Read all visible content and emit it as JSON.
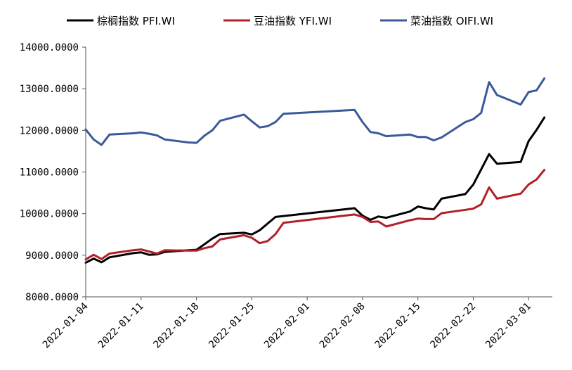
{
  "chart_data": {
    "type": "line",
    "ylim": [
      8000,
      14000
    ],
    "yticks": [
      "8000.0000",
      "9000.0000",
      "10000.0000",
      "11000.0000",
      "12000.0000",
      "13000.0000",
      "14000.0000"
    ],
    "xlim": [
      "2022-01-04",
      "2022-03-04"
    ],
    "xticks": [
      "2022-01-04",
      "2022-01-11",
      "2022-01-18",
      "2022-01-25",
      "2022-02-01",
      "2022-02-08",
      "2022-02-15",
      "2022-02-22",
      "2022-03-01"
    ],
    "legend_position": "top",
    "grid": false,
    "series": [
      {
        "name": "棕榈指数 PFI.WI",
        "color": "#000000",
        "points": [
          [
            "2022-01-04",
            8820
          ],
          [
            "2022-01-05",
            8920
          ],
          [
            "2022-01-06",
            8830
          ],
          [
            "2022-01-07",
            8950
          ],
          [
            "2022-01-10",
            9050
          ],
          [
            "2022-01-11",
            9070
          ],
          [
            "2022-01-12",
            9010
          ],
          [
            "2022-01-13",
            9020
          ],
          [
            "2022-01-14",
            9080
          ],
          [
            "2022-01-17",
            9120
          ],
          [
            "2022-01-18",
            9130
          ],
          [
            "2022-01-19",
            9260
          ],
          [
            "2022-01-20",
            9400
          ],
          [
            "2022-01-21",
            9510
          ],
          [
            "2022-01-24",
            9540
          ],
          [
            "2022-01-25",
            9500
          ],
          [
            "2022-01-26",
            9600
          ],
          [
            "2022-01-27",
            9760
          ],
          [
            "2022-01-28",
            9920
          ],
          [
            "2022-02-07",
            10130
          ],
          [
            "2022-02-08",
            9950
          ],
          [
            "2022-02-09",
            9850
          ],
          [
            "2022-02-10",
            9930
          ],
          [
            "2022-02-11",
            9900
          ],
          [
            "2022-02-14",
            10050
          ],
          [
            "2022-02-15",
            10170
          ],
          [
            "2022-02-16",
            10130
          ],
          [
            "2022-02-17",
            10100
          ],
          [
            "2022-02-18",
            10360
          ],
          [
            "2022-02-21",
            10470
          ],
          [
            "2022-02-22",
            10700
          ],
          [
            "2022-02-23",
            11060
          ],
          [
            "2022-02-24",
            11430
          ],
          [
            "2022-02-25",
            11200
          ],
          [
            "2022-02-28",
            11240
          ],
          [
            "2022-03-01",
            11740
          ],
          [
            "2022-03-02",
            12010
          ],
          [
            "2022-03-03",
            12310
          ]
        ]
      },
      {
        "name": "豆油指数 YFI.WI",
        "color": "#B22028",
        "points": [
          [
            "2022-01-04",
            8900
          ],
          [
            "2022-01-05",
            9010
          ],
          [
            "2022-01-06",
            8910
          ],
          [
            "2022-01-07",
            9040
          ],
          [
            "2022-01-10",
            9120
          ],
          [
            "2022-01-11",
            9140
          ],
          [
            "2022-01-12",
            9090
          ],
          [
            "2022-01-13",
            9040
          ],
          [
            "2022-01-14",
            9120
          ],
          [
            "2022-01-17",
            9110
          ],
          [
            "2022-01-18",
            9110
          ],
          [
            "2022-01-19",
            9170
          ],
          [
            "2022-01-20",
            9210
          ],
          [
            "2022-01-21",
            9380
          ],
          [
            "2022-01-24",
            9480
          ],
          [
            "2022-01-25",
            9420
          ],
          [
            "2022-01-26",
            9290
          ],
          [
            "2022-01-27",
            9340
          ],
          [
            "2022-01-28",
            9510
          ],
          [
            "2022-01-29",
            9780
          ],
          [
            "2022-02-07",
            9980
          ],
          [
            "2022-02-08",
            9920
          ],
          [
            "2022-02-09",
            9800
          ],
          [
            "2022-02-10",
            9810
          ],
          [
            "2022-02-11",
            9690
          ],
          [
            "2022-02-14",
            9840
          ],
          [
            "2022-02-15",
            9880
          ],
          [
            "2022-02-16",
            9870
          ],
          [
            "2022-02-17",
            9870
          ],
          [
            "2022-02-18",
            10010
          ],
          [
            "2022-02-21",
            10090
          ],
          [
            "2022-02-22",
            10120
          ],
          [
            "2022-02-23",
            10220
          ],
          [
            "2022-02-24",
            10630
          ],
          [
            "2022-02-25",
            10360
          ],
          [
            "2022-02-28",
            10480
          ],
          [
            "2022-03-01",
            10700
          ],
          [
            "2022-03-02",
            10820
          ],
          [
            "2022-03-03",
            11050
          ]
        ]
      },
      {
        "name": "菜油指数 OIFI.WI",
        "color": "#3A5A9C",
        "points": [
          [
            "2022-01-04",
            12020
          ],
          [
            "2022-01-05",
            11780
          ],
          [
            "2022-01-06",
            11650
          ],
          [
            "2022-01-07",
            11900
          ],
          [
            "2022-01-10",
            11930
          ],
          [
            "2022-01-11",
            11950
          ],
          [
            "2022-01-12",
            11920
          ],
          [
            "2022-01-13",
            11880
          ],
          [
            "2022-01-14",
            11780
          ],
          [
            "2022-01-17",
            11710
          ],
          [
            "2022-01-18",
            11700
          ],
          [
            "2022-01-19",
            11870
          ],
          [
            "2022-01-20",
            12000
          ],
          [
            "2022-01-21",
            12230
          ],
          [
            "2022-01-24",
            12380
          ],
          [
            "2022-01-25",
            12220
          ],
          [
            "2022-01-26",
            12070
          ],
          [
            "2022-01-27",
            12100
          ],
          [
            "2022-01-28",
            12200
          ],
          [
            "2022-01-29",
            12400
          ],
          [
            "2022-02-07",
            12490
          ],
          [
            "2022-02-08",
            12200
          ],
          [
            "2022-02-09",
            11960
          ],
          [
            "2022-02-10",
            11930
          ],
          [
            "2022-02-11",
            11860
          ],
          [
            "2022-02-14",
            11900
          ],
          [
            "2022-02-15",
            11840
          ],
          [
            "2022-02-16",
            11840
          ],
          [
            "2022-02-17",
            11760
          ],
          [
            "2022-02-18",
            11830
          ],
          [
            "2022-02-21",
            12200
          ],
          [
            "2022-02-22",
            12270
          ],
          [
            "2022-02-23",
            12420
          ],
          [
            "2022-02-24",
            13160
          ],
          [
            "2022-02-25",
            12850
          ],
          [
            "2022-02-28",
            12620
          ],
          [
            "2022-03-01",
            12920
          ],
          [
            "2022-03-02",
            12960
          ],
          [
            "2022-03-03",
            13250
          ]
        ]
      }
    ]
  }
}
